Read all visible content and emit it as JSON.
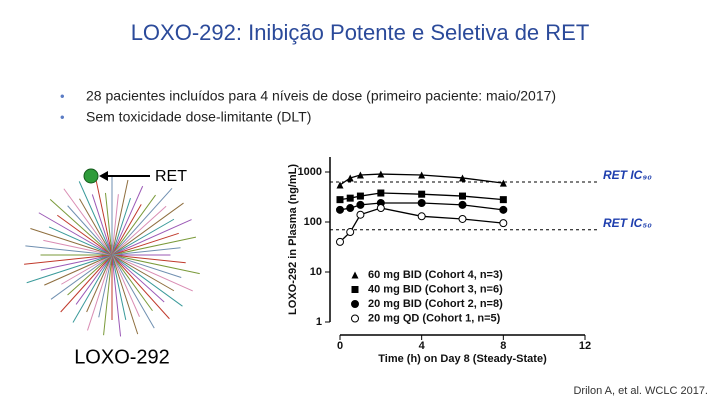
{
  "header": {
    "title": "LOXO-292: Inibição Potente e Seletiva de RET"
  },
  "bullets": [
    "28 pacientes incluídos para 4 níveis de dose (primeiro paciente: maio/2017)",
    "Sem toxicidade dose-limitante (DLT)"
  ],
  "figure": {
    "target_label": "RET",
    "compound_label": "LOXO-292"
  },
  "citation": "Drilon A, et al. WCLC 2017.",
  "chart_data": {
    "type": "line",
    "x_label": "Time (h) on Day 8 (Steady-State)",
    "y_label": "LOXO-292 in Plasma (ng/mL)",
    "x": [
      0,
      0.5,
      1,
      2,
      4,
      6,
      8
    ],
    "series": [
      {
        "name": "60 mg BID (Cohort 4, n=3)",
        "color": "#000000",
        "marker": "triangle",
        "values": [
          550,
          760,
          870,
          910,
          870,
          760,
          600
        ]
      },
      {
        "name": "40 mg BID (Cohort 3, n=6)",
        "color": "#000000",
        "marker": "square",
        "values": [
          280,
          300,
          330,
          380,
          360,
          330,
          280
        ]
      },
      {
        "name": "20 mg BID (Cohort 2, n=8)",
        "color": "#000000",
        "marker": "circle",
        "values": [
          175,
          190,
          220,
          240,
          240,
          220,
          175
        ]
      },
      {
        "name": "20 mg QD (Cohort 1, n=5)",
        "color": "#000000",
        "marker": "open-circle",
        "values": [
          40,
          63,
          140,
          190,
          130,
          115,
          95
        ]
      }
    ],
    "xlim": [
      0,
      12
    ],
    "xticks": [
      0,
      4,
      8,
      12
    ],
    "ylim": [
      1,
      2000
    ],
    "yticks": [
      1,
      10,
      100,
      1000
    ],
    "log_y": true,
    "reference_lines": [
      {
        "label": "RET IC₉₀",
        "value": 630,
        "color": "#1f3fae"
      },
      {
        "label": "RET IC₅₀",
        "value": 70,
        "color": "#1f3fae"
      }
    ],
    "legend": "lower left"
  }
}
